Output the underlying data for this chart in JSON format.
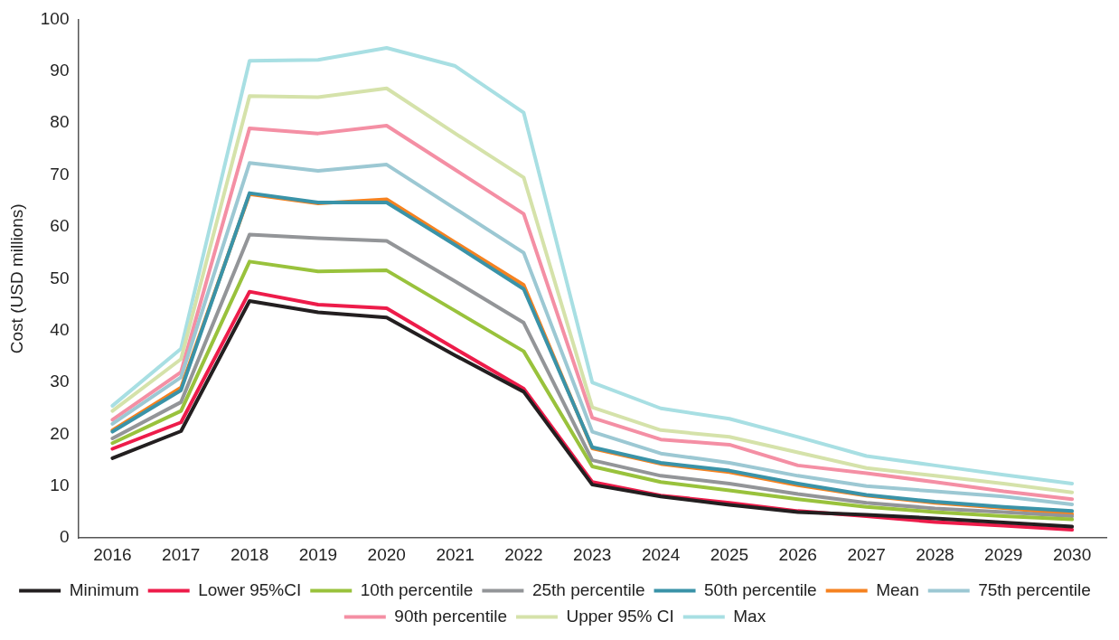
{
  "chart_data": {
    "type": "line",
    "ylabel": "Cost (USD millions)",
    "categories": [
      "2016",
      "2017",
      "2018",
      "2019",
      "2020",
      "2021",
      "2022",
      "2023",
      "2024",
      "2025",
      "2026",
      "2027",
      "2028",
      "2029",
      "2030"
    ],
    "ylim": [
      0,
      100
    ],
    "yticks": [
      0,
      10,
      20,
      30,
      40,
      50,
      60,
      70,
      80,
      90,
      100
    ],
    "grid": false,
    "legend": "bottom",
    "marker": "none",
    "line_style": "solid",
    "series": [
      {
        "name": "Minimum",
        "color": "#231f20",
        "values": [
          15.4,
          20.6,
          45.7,
          43.5,
          42.5,
          35.2,
          28.2,
          10.3,
          8,
          6.4,
          5,
          4.5,
          3.8,
          3,
          2.2
        ]
      },
      {
        "name": "Lower 95%CI",
        "color": "#ed1c4a",
        "values": [
          17.2,
          22.3,
          47.5,
          45,
          44.3,
          36.5,
          28.8,
          10.8,
          8.2,
          6.8,
          5.2,
          4.2,
          3.1,
          2.4,
          1.6
        ]
      },
      {
        "name": "10th percentile",
        "color": "#99c23c",
        "values": [
          18.3,
          24.5,
          53.3,
          51.4,
          51.6,
          43.8,
          36,
          13.8,
          10.8,
          9.2,
          7.5,
          6,
          5,
          4.2,
          3.6
        ]
      },
      {
        "name": "25th percentile",
        "color": "#939598",
        "values": [
          19.2,
          26.2,
          58.5,
          57.8,
          57.3,
          49.5,
          41.5,
          15,
          12,
          10.5,
          8.5,
          6.8,
          5.7,
          5,
          4.2
        ]
      },
      {
        "name": "50th percentile",
        "color": "#3a93a8",
        "values": [
          20.5,
          28.5,
          66.5,
          64.7,
          64.7,
          56.5,
          48,
          17.5,
          14.5,
          13,
          10.5,
          8.3,
          7,
          6,
          5.2
        ]
      },
      {
        "name": "Mean",
        "color": "#f58220",
        "values": [
          20.8,
          29,
          66.3,
          64.5,
          65.3,
          57,
          48.8,
          17.3,
          14.3,
          12.7,
          10.2,
          8.2,
          6.8,
          5.8,
          4.6
        ]
      },
      {
        "name": "75th percentile",
        "color": "#9cc8d3",
        "values": [
          22,
          31,
          72.3,
          70.8,
          72,
          63.5,
          55,
          20.5,
          16.3,
          14.5,
          12,
          10,
          9,
          8,
          6.5
        ]
      },
      {
        "name": "90th percentile",
        "color": "#f48fa4",
        "values": [
          22.8,
          32,
          79,
          78,
          79.5,
          71,
          62.5,
          23.2,
          19,
          18,
          14,
          12.5,
          10.8,
          9,
          7.5
        ]
      },
      {
        "name": "Upper 95% CI",
        "color": "#d5e2aa",
        "values": [
          24.5,
          34.5,
          85.2,
          85,
          86.7,
          78,
          69.5,
          25.2,
          20.8,
          19.5,
          16.5,
          13.5,
          12,
          10.5,
          8.8
        ]
      },
      {
        "name": "Max",
        "color": "#a8dfe3",
        "values": [
          25.5,
          36.5,
          92,
          92.2,
          94.5,
          91,
          82,
          30,
          25,
          23,
          19.5,
          15.8,
          14,
          12.2,
          10.5
        ]
      }
    ]
  }
}
